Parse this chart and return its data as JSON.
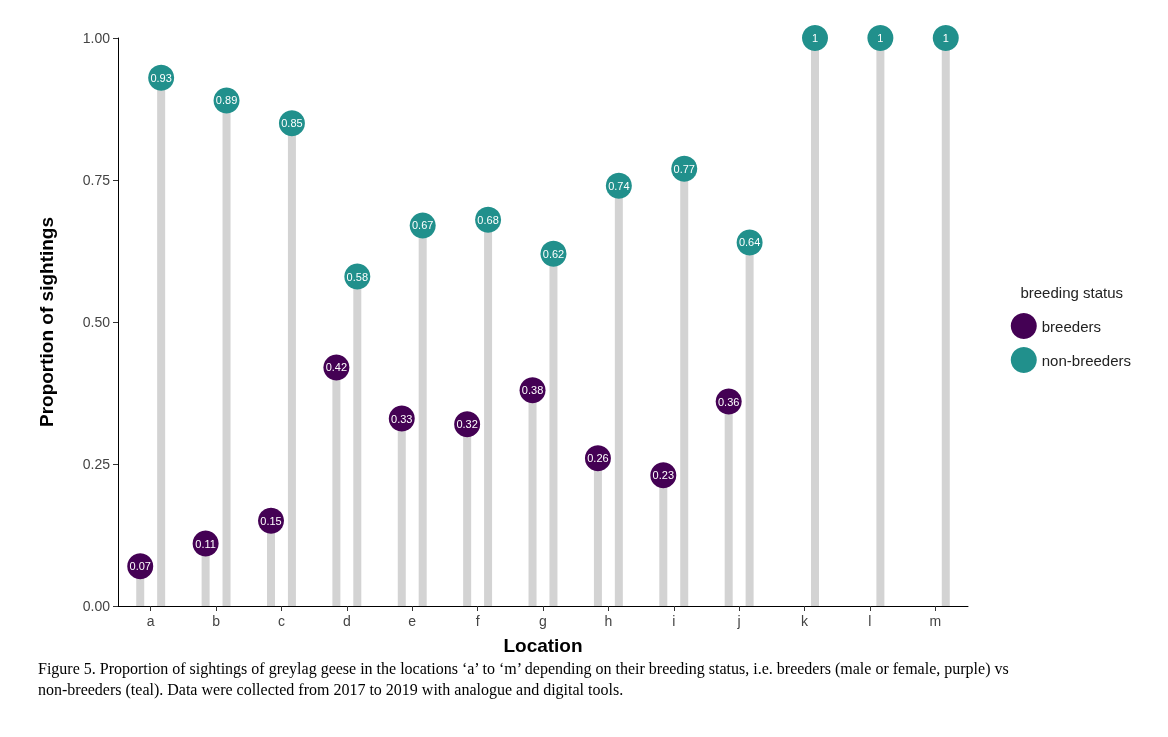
{
  "chart_data": {
    "type": "lollipop",
    "xlabel": "Location",
    "ylabel": "Proportion of sightings",
    "legend_title": "breeding status",
    "categories": [
      "a",
      "b",
      "c",
      "d",
      "e",
      "f",
      "g",
      "h",
      "i",
      "j",
      "k",
      "l",
      "m"
    ],
    "series": [
      {
        "name": "breeders",
        "color": "#440154",
        "values": [
          0.07,
          0.11,
          0.15,
          0.42,
          0.33,
          0.32,
          0.38,
          0.26,
          0.23,
          0.36,
          null,
          null,
          null
        ]
      },
      {
        "name": "non-breeders",
        "color": "#21908c",
        "values": [
          0.93,
          0.89,
          0.85,
          0.58,
          0.67,
          0.68,
          0.62,
          0.74,
          0.77,
          0.64,
          1,
          1,
          1
        ]
      }
    ],
    "ylim": [
      0,
      1
    ],
    "yticks": [
      {
        "value": 0,
        "label": "0.00"
      },
      {
        "value": 0.25,
        "label": "0.25"
      },
      {
        "value": 0.5,
        "label": "0.50"
      },
      {
        "value": 0.75,
        "label": "0.75"
      },
      {
        "value": 1,
        "label": "1.00"
      }
    ],
    "grid": false,
    "legend": "right",
    "marker": "circle",
    "data_labels": true,
    "annotations": [
      "Figure 5. Proportion of sightings of greylag geese in the locations ‘a’ to ‘m’ depending on their breeding status, i.e. breeders (male or female, purple) vs non-breeders (teal). Data were collected from 2017 to 2019 with analogue and digital tools."
    ]
  }
}
